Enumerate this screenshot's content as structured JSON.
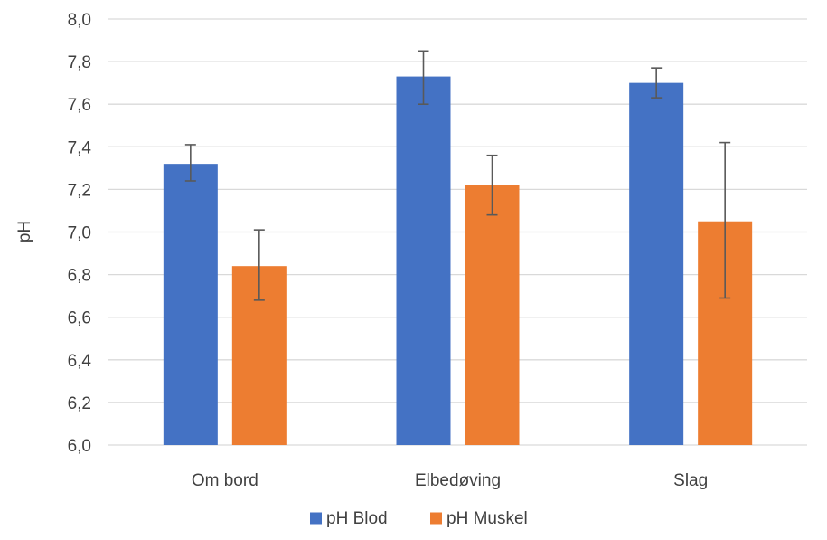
{
  "chart_data": {
    "type": "bar",
    "title": "",
    "xlabel": "",
    "ylabel": "pH",
    "ylim": [
      6.0,
      8.0
    ],
    "ytick_step": 0.2,
    "ytick_labels": [
      "6,0",
      "6,2",
      "6,4",
      "6,6",
      "6,8",
      "7,0",
      "7,2",
      "7,4",
      "7,6",
      "7,8",
      "8,0"
    ],
    "grid": true,
    "legend_position": "bottom",
    "categories": [
      "Om bord",
      "Elbedøving",
      "Slag"
    ],
    "series": [
      {
        "name": "pH Blod",
        "color": "#4472C4",
        "values": [
          7.32,
          7.73,
          7.7
        ],
        "error_low": [
          7.24,
          7.6,
          7.63
        ],
        "error_high": [
          7.41,
          7.85,
          7.77
        ]
      },
      {
        "name": "pH Muskel",
        "color": "#ED7D31",
        "values": [
          6.84,
          7.22,
          7.05
        ],
        "error_low": [
          6.68,
          7.08,
          6.69
        ],
        "error_high": [
          7.01,
          7.36,
          7.42
        ]
      }
    ]
  }
}
